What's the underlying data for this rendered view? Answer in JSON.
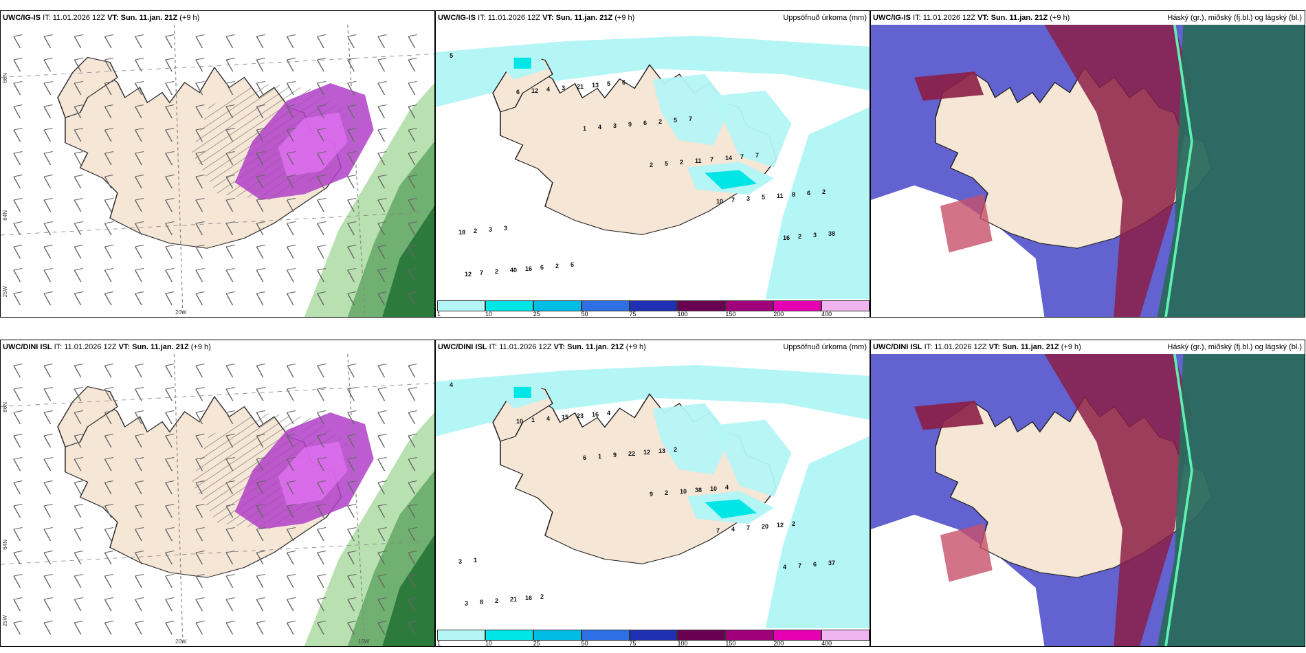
{
  "rows": [
    {
      "model": "UWC/IG-IS",
      "it_label": "IT:",
      "it_value": "11.01.2026 12Z",
      "vt_label": "VT:",
      "vt_value": "Sun. 11.jan. 21Z",
      "lead": "(+9 h)",
      "precip_title": "Uppsöfnuð úrkoma (mm)",
      "cloud_title": "Háský (gr.), miðský (fj.bl.) og lágský (bl.)",
      "wind_lat_labels": [
        "66N",
        "64N",
        "25W"
      ],
      "wind_lon_labels": [
        "20W"
      ],
      "precip_values": [
        "5",
        "6",
        "1",
        "2",
        "10",
        "16",
        "12",
        "12",
        "4",
        "5",
        "7",
        "2",
        "7",
        "4",
        "3",
        "2",
        "3",
        "3",
        "2",
        "3",
        "9",
        "11",
        "5",
        "38",
        "40",
        "21",
        "6",
        "7",
        "11",
        "18",
        "16",
        "13",
        "2",
        "14",
        "8",
        "2",
        "6",
        "5",
        "5",
        "7",
        "6",
        "3",
        "2",
        "6",
        "7",
        "7",
        "2",
        "3",
        "6"
      ]
    },
    {
      "model": "UWC/DINI ISL",
      "it_label": "IT:",
      "it_value": "11.01.2026 12Z",
      "vt_label": "VT:",
      "vt_value": "Sun. 11.jan. 21Z",
      "lead": "(+9 h)",
      "precip_title": "Uppsöfnuð úrkoma (mm)",
      "cloud_title": "Háský (gr.), miðský (fj.bl.) og lágský (bl.)",
      "wind_lat_labels": [
        "66N",
        "64N",
        "25W"
      ],
      "wind_lon_labels": [
        "20W",
        "15W"
      ],
      "precip_values": [
        "4",
        "10",
        "6",
        "9",
        "7",
        "4",
        "3",
        "1",
        "1",
        "2",
        "4",
        "7",
        "8",
        "4",
        "9",
        "10",
        "7",
        "6",
        "2",
        "15",
        "22",
        "38",
        "20",
        "37",
        "21",
        "23",
        "12",
        "10",
        "12",
        "3",
        "16",
        "16",
        "13",
        "4",
        "2",
        "1",
        "2",
        "4",
        "2"
      ]
    }
  ],
  "colorbar": {
    "labels": [
      "1",
      "10",
      "25",
      "50",
      "75",
      "100",
      "150",
      "200",
      "400"
    ],
    "colors": [
      "#b4f5f5",
      "#00e6e6",
      "#00bde6",
      "#2e6fe6",
      "#2030b4",
      "#6a0050",
      "#a0007a",
      "#e600b4",
      "#f0b4f0"
    ]
  },
  "colors": {
    "land": "#f5e6d6",
    "precip_light": "#b4f5f5",
    "precip_mid": "#00e6e6",
    "snow_purple": "#b040c8",
    "rain_green": "#70c070",
    "cloud_blue": "#4646c8",
    "cloud_red": "#8c1e46",
    "cloud_teal": "#2a6a5e"
  }
}
